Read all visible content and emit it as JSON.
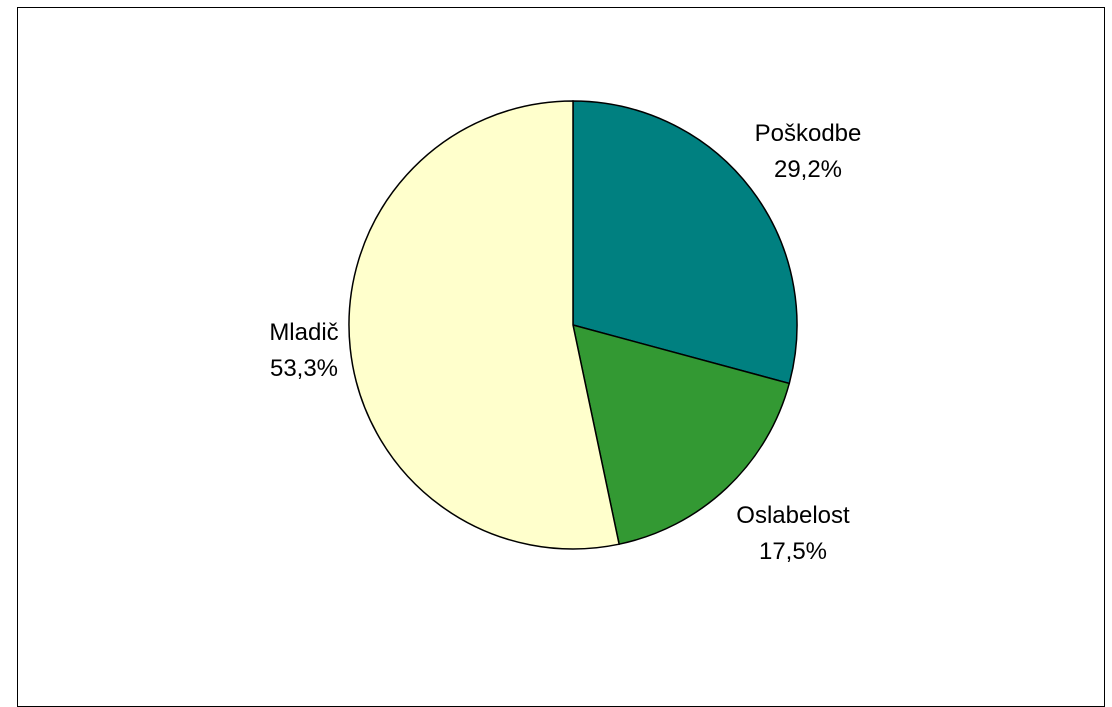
{
  "chart_data": {
    "type": "pie",
    "title": "",
    "legend": "none",
    "slices": [
      {
        "name": "Poškodbe",
        "value": 29.2,
        "label": "29,2%",
        "color": "#008080"
      },
      {
        "name": "Oslabelost",
        "value": 17.5,
        "label": "17,5%",
        "color": "#339933"
      },
      {
        "name": "Mladič",
        "value": 53.3,
        "label": "53,3%",
        "color": "#FFFFCC"
      }
    ]
  }
}
